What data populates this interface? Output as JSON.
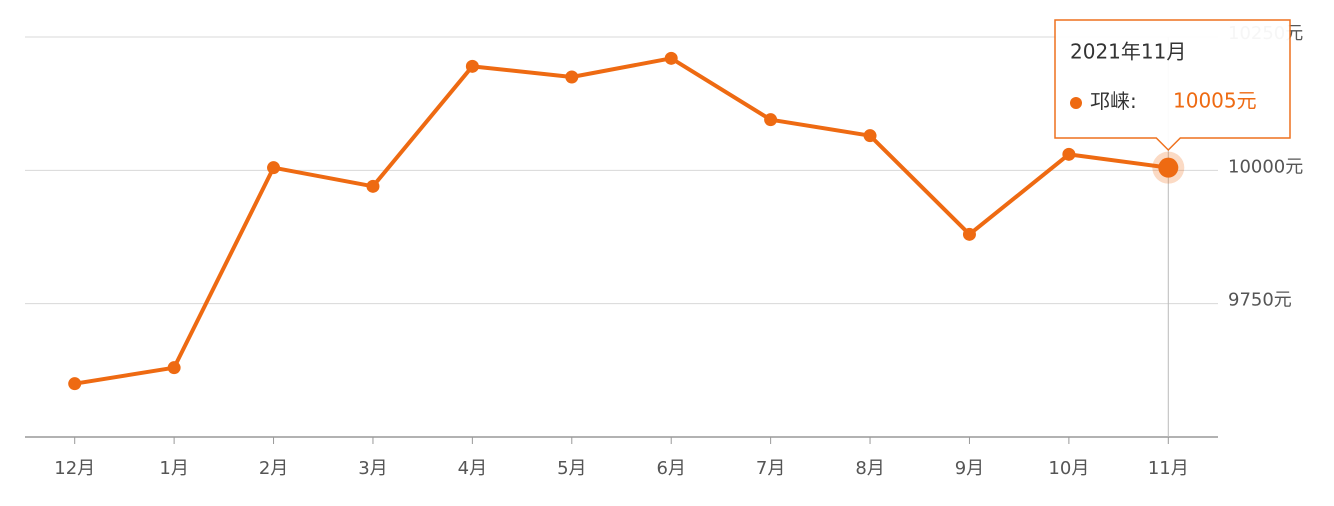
{
  "chart_data": {
    "type": "line",
    "categories": [
      "12月",
      "1月",
      "2月",
      "3月",
      "4月",
      "5月",
      "6月",
      "7月",
      "8月",
      "9月",
      "10月",
      "11月"
    ],
    "series": [
      {
        "name": "邛崃",
        "color": "#ee6a12",
        "values": [
          9600,
          9630,
          10005,
          9970,
          10195,
          10175,
          10210,
          10095,
          10065,
          9880,
          10030,
          10005
        ]
      }
    ],
    "ylim": [
      9500,
      10250
    ],
    "yticks": [
      {
        "value": 9750,
        "label": "9750元"
      },
      {
        "value": 10000,
        "label": "10000元"
      },
      {
        "value": 10250,
        "label": "10250元"
      }
    ],
    "grid": true,
    "tooltip": {
      "title": "2021年11月",
      "separator": ":",
      "value_label": "10005元",
      "index": 11
    }
  }
}
